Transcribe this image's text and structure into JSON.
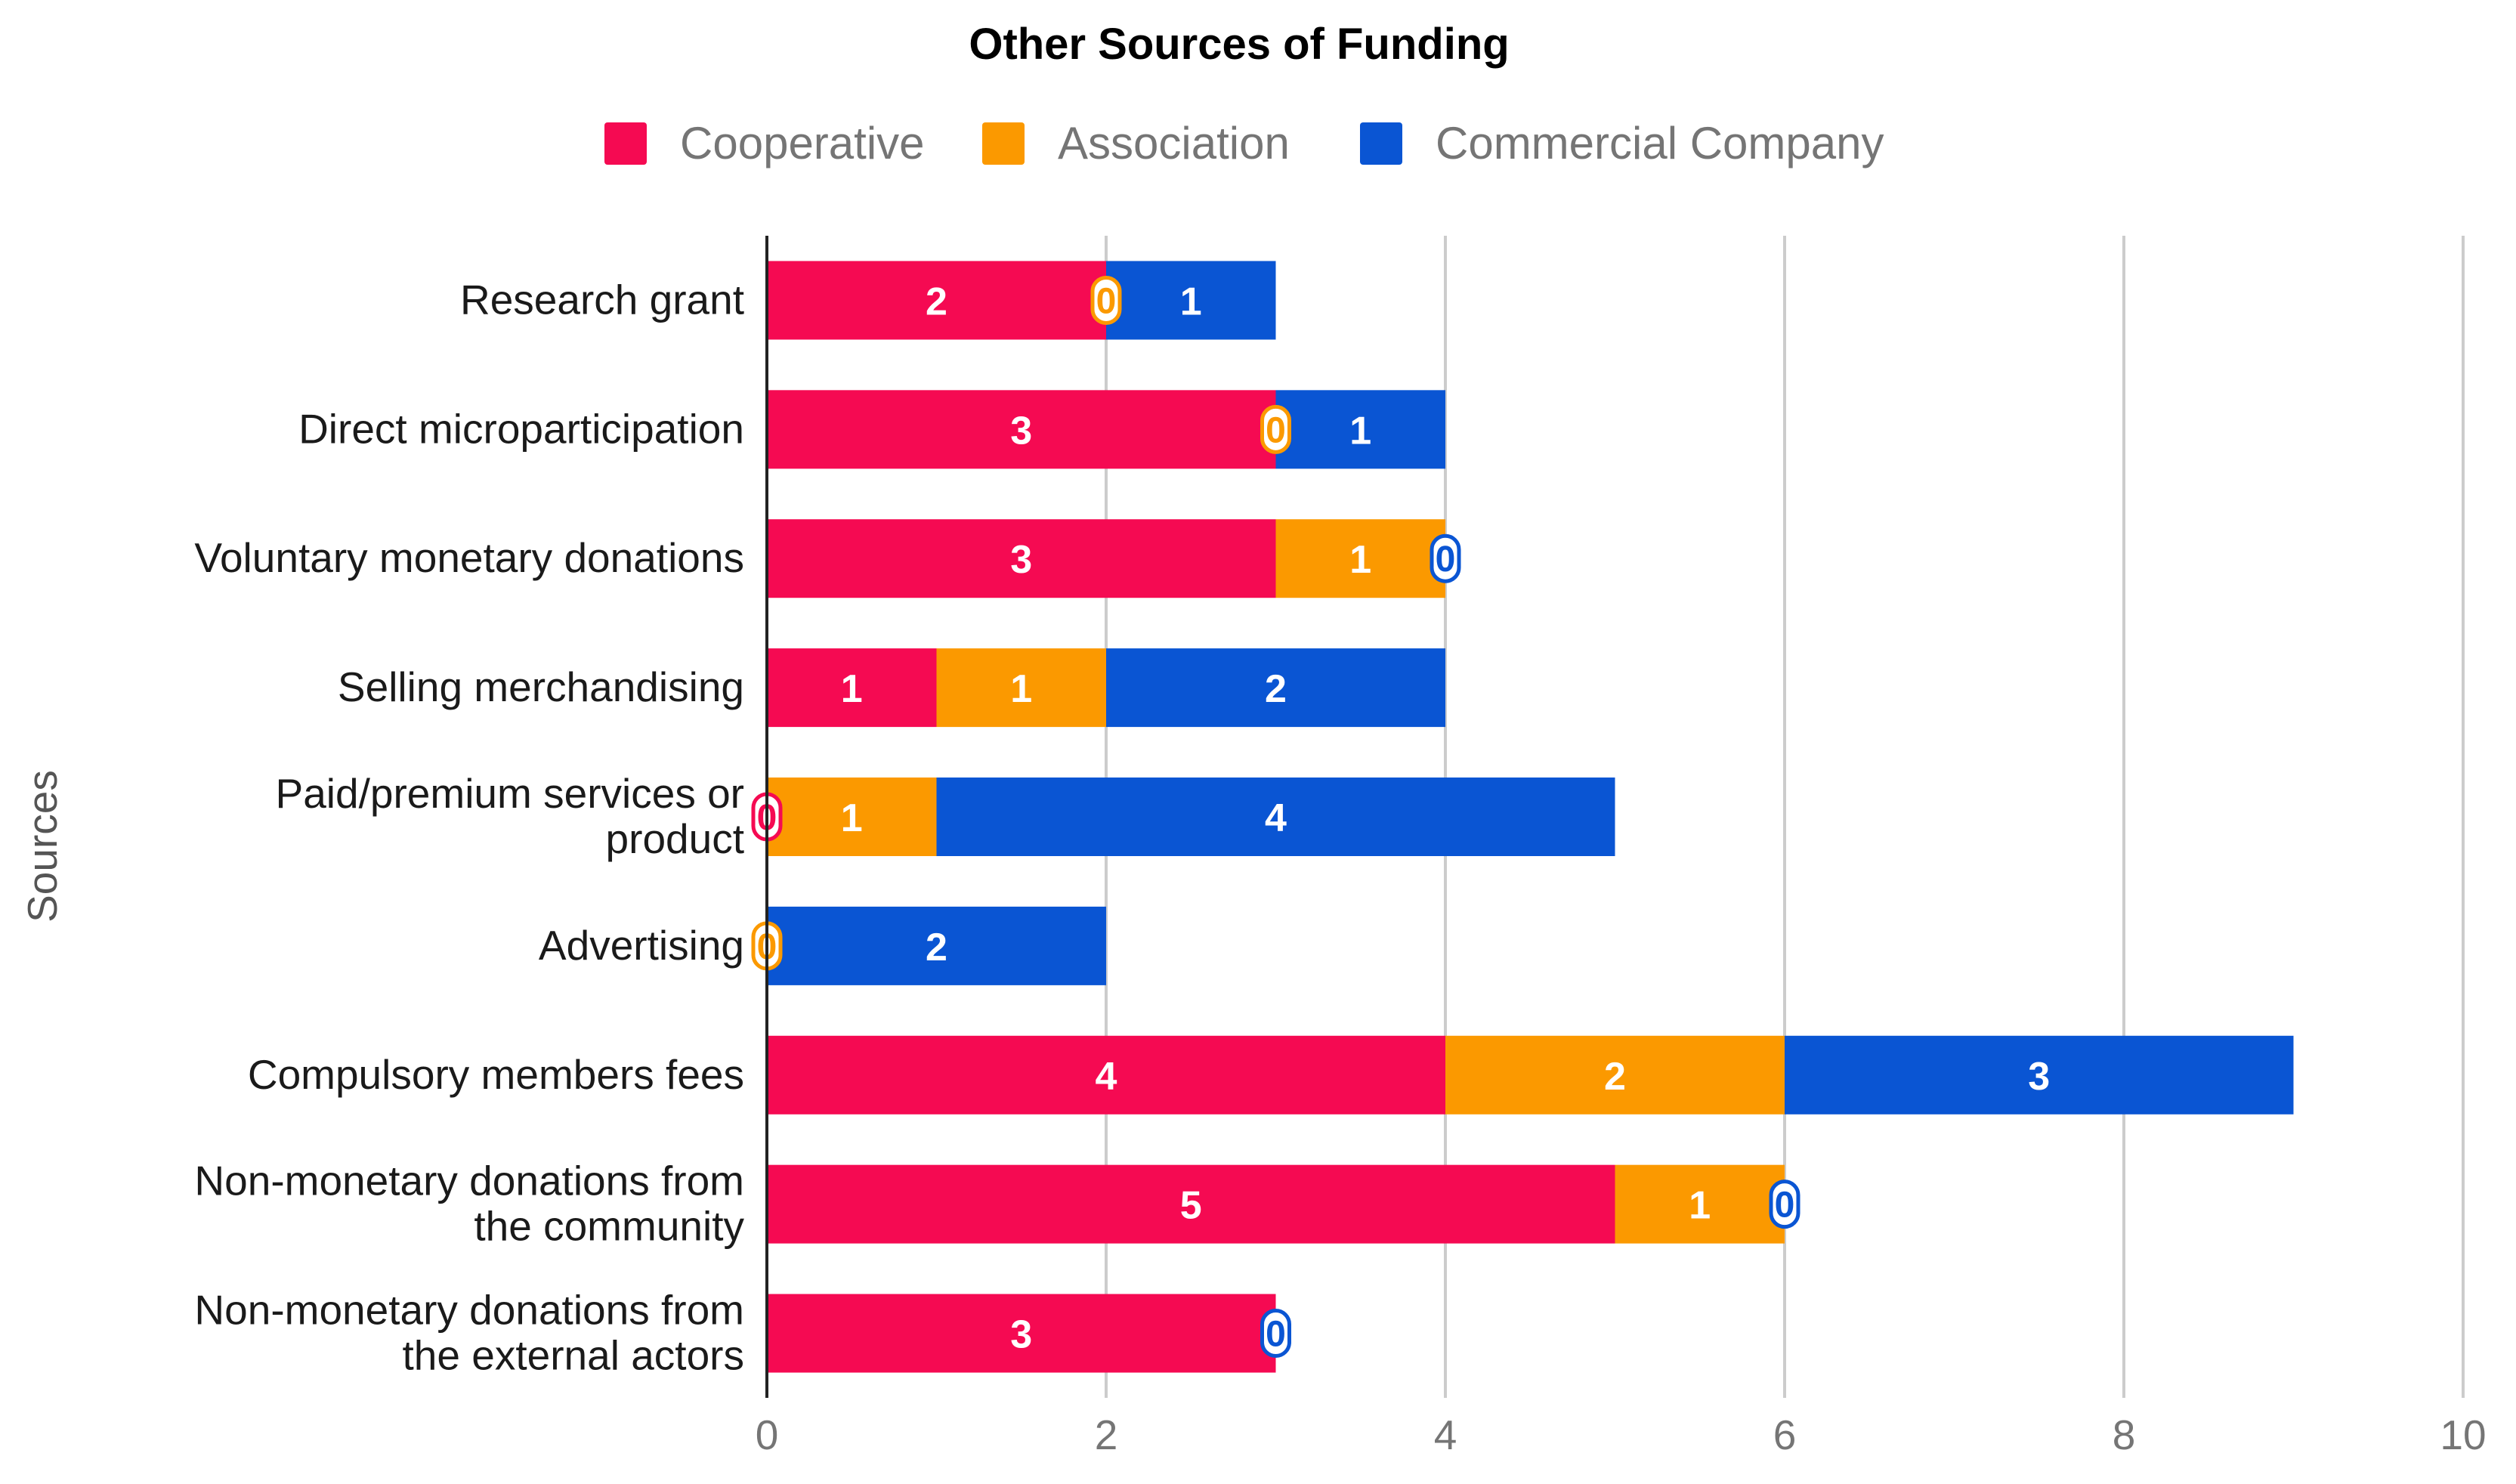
{
  "chart_data": {
    "type": "bar",
    "orientation": "horizontal",
    "stacked": true,
    "title": "Other Sources of Funding",
    "ylabel": "Sources",
    "xlabel": "",
    "xlim": [
      0,
      10
    ],
    "x_ticks": [
      "0",
      "2",
      "4",
      "6",
      "8",
      "10"
    ],
    "grid": true,
    "legend_position": "top-center",
    "categories": [
      "Research grant",
      "Direct microparticipation",
      "Voluntary monetary donations",
      "Selling merchandising",
      "Paid/premium services or product",
      "Advertising",
      "Compulsory members fees",
      "Non-monetary donations from the community",
      "Non-monetary donations from the external actors"
    ],
    "series": [
      {
        "name": "Cooperative",
        "color": "#f50a52",
        "values": [
          2,
          3,
          3,
          1,
          0,
          null,
          4,
          5,
          3
        ]
      },
      {
        "name": "Association",
        "color": "#fb9900",
        "values": [
          0,
          0,
          1,
          1,
          1,
          0,
          2,
          1,
          null
        ]
      },
      {
        "name": "Commercial Company",
        "color": "#0a55d3",
        "values": [
          1,
          1,
          0,
          2,
          4,
          2,
          3,
          0,
          0
        ]
      }
    ]
  }
}
